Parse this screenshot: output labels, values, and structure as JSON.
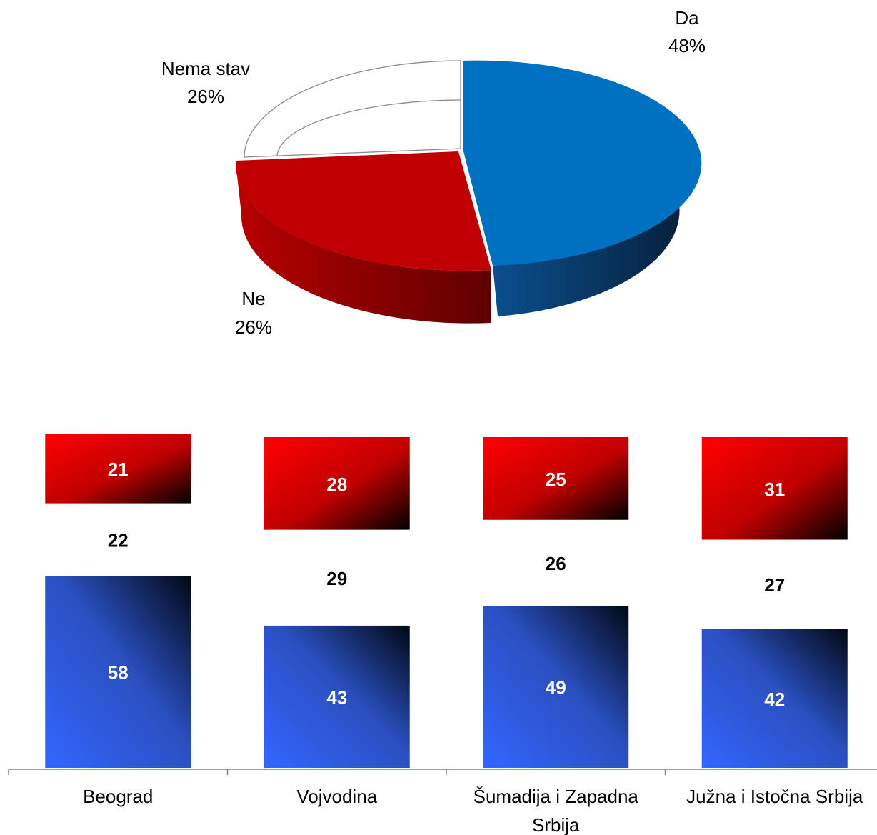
{
  "colors": {
    "da": "#0070C0",
    "ne": "#C00000",
    "nema_stav": "#FFFFFF",
    "bar_da": "#3366FF",
    "bar_ne": "#FF0000"
  },
  "chart_data": [
    {
      "type": "pie",
      "style": "3d-exploded",
      "labels": [
        {
          "name": "Da",
          "value_label": "48%"
        },
        {
          "name": "Ne",
          "value_label": "26%"
        },
        {
          "name": "Nema stav",
          "value_label": "26%"
        }
      ],
      "categories": [
        "Da",
        "Ne",
        "Nema stav"
      ],
      "values": [
        48,
        26,
        26
      ]
    },
    {
      "type": "bar",
      "stacked": true,
      "orientation": "vertical",
      "categories": [
        "Beograd",
        "Vojvodina",
        "Šumadija i Zapadna Srbija",
        "Južna i Istočna Srbija"
      ],
      "series": [
        {
          "values": [
            58,
            43,
            49,
            42
          ],
          "labels": [
            "58",
            "43",
            "49",
            "42"
          ]
        },
        {
          "values": [
            22,
            29,
            26,
            27
          ],
          "labels": [
            "22",
            "29",
            "26",
            "27"
          ]
        },
        {
          "values": [
            21,
            28,
            25,
            31
          ],
          "labels": [
            "21",
            "28",
            "25",
            "31"
          ]
        }
      ],
      "ylim": [
        0,
        100
      ],
      "grid": false,
      "legend": "none"
    }
  ]
}
